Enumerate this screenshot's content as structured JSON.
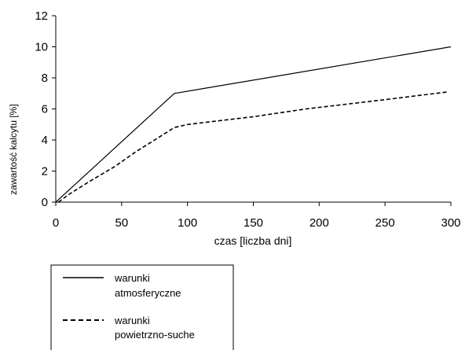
{
  "chart_data": {
    "type": "line",
    "title": "",
    "xlabel": "czas [liczba dni]",
    "ylabel": "zawartość kalcytu [%]",
    "xlim": [
      0,
      300
    ],
    "ylim": [
      0,
      12
    ],
    "xticks": [
      0,
      50,
      100,
      150,
      200,
      250,
      300
    ],
    "yticks": [
      0,
      2,
      4,
      6,
      8,
      10,
      12
    ],
    "grid": false,
    "legend_position": "bottom-left",
    "series": [
      {
        "name": "warunki atmosferyczne",
        "style": "solid",
        "color": "#000000",
        "x": [
          0,
          90,
          300
        ],
        "y": [
          0,
          7.0,
          10.0
        ]
      },
      {
        "name": "warunki powietrzno-suche",
        "style": "dashed",
        "color": "#000000",
        "x": [
          2,
          10,
          25,
          45,
          60,
          75,
          90,
          100,
          120,
          150,
          190,
          250,
          298
        ],
        "y": [
          0,
          0.5,
          1.3,
          2.3,
          3.2,
          4.0,
          4.8,
          5.0,
          5.2,
          5.5,
          6.0,
          6.6,
          7.1
        ]
      }
    ]
  }
}
